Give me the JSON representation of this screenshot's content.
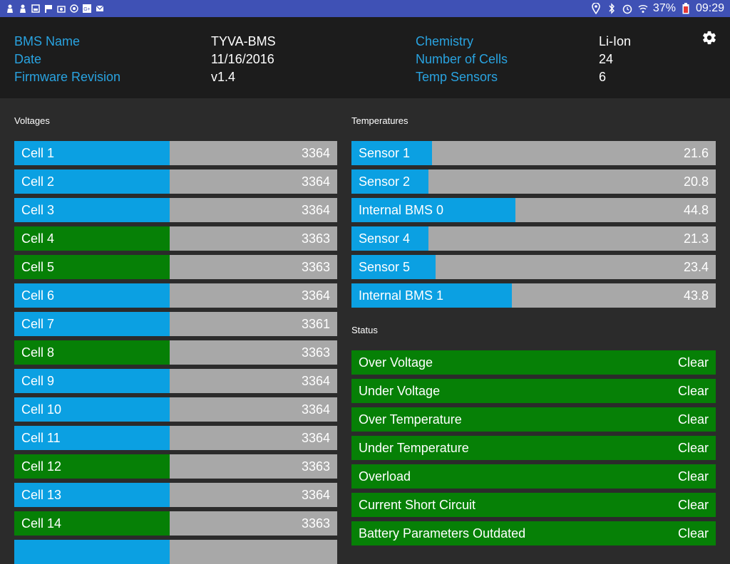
{
  "statusbar": {
    "battery": "37%",
    "time": "09:29",
    "left_icons": [
      "person-icon",
      "person-icon",
      "image-icon",
      "flag-icon",
      "camera-icon",
      "target-icon",
      "google-plus-icon",
      "mail-icon"
    ],
    "right_icons": [
      "location-icon",
      "bluetooth-icon",
      "alarm-icon",
      "wifi-icon",
      "battery-icon"
    ]
  },
  "info": {
    "bms_name_label": "BMS Name",
    "bms_name": "TYVA-BMS",
    "date_label": "Date",
    "date": "11/16/2016",
    "firmware_label": "Firmware Revision",
    "firmware": "v1.4",
    "chemistry_label": "Chemistry",
    "chemistry": "Li-Ion",
    "cells_label": "Number of Cells",
    "cells": "24",
    "temp_label": "Temp Sensors",
    "temp": "6"
  },
  "voltages": {
    "title": "Voltages",
    "items": [
      {
        "label": "Cell 1",
        "value": "3364",
        "color": "blue"
      },
      {
        "label": "Cell 2",
        "value": "3364",
        "color": "blue"
      },
      {
        "label": "Cell 3",
        "value": "3364",
        "color": "blue"
      },
      {
        "label": "Cell 4",
        "value": "3363",
        "color": "green"
      },
      {
        "label": "Cell 5",
        "value": "3363",
        "color": "green"
      },
      {
        "label": "Cell 6",
        "value": "3364",
        "color": "blue"
      },
      {
        "label": "Cell 7",
        "value": "3361",
        "color": "blue"
      },
      {
        "label": "Cell 8",
        "value": "3363",
        "color": "green"
      },
      {
        "label": "Cell 9",
        "value": "3364",
        "color": "blue"
      },
      {
        "label": "Cell 10",
        "value": "3364",
        "color": "blue"
      },
      {
        "label": "Cell 11",
        "value": "3364",
        "color": "blue"
      },
      {
        "label": "Cell 12",
        "value": "3363",
        "color": "green"
      },
      {
        "label": "Cell 13",
        "value": "3364",
        "color": "blue"
      },
      {
        "label": "Cell 14",
        "value": "3363",
        "color": "green"
      },
      {
        "label": "",
        "value": "",
        "color": "blue"
      }
    ]
  },
  "temperatures": {
    "title": "Temperatures",
    "items": [
      {
        "label": "Sensor 1",
        "value": "21.6",
        "level": 0.221
      },
      {
        "label": "Sensor 2",
        "value": "20.8",
        "level": 0.212
      },
      {
        "label": "Internal BMS 0",
        "value": "44.8",
        "level": 0.45
      },
      {
        "label": "Sensor 4",
        "value": "21.3",
        "level": 0.212
      },
      {
        "label": "Sensor 5",
        "value": "23.4",
        "level": 0.231
      },
      {
        "label": "Internal BMS 1",
        "value": "43.8",
        "level": 0.44
      }
    ]
  },
  "status": {
    "title": "Status",
    "items": [
      {
        "label": "Over Voltage",
        "value": "Clear"
      },
      {
        "label": "Under Voltage",
        "value": "Clear"
      },
      {
        "label": "Over Temperature",
        "value": "Clear"
      },
      {
        "label": "Under Temperature",
        "value": "Clear"
      },
      {
        "label": "Overload",
        "value": "Clear"
      },
      {
        "label": "Current Short Circuit",
        "value": "Clear"
      },
      {
        "label": "Battery Parameters Outdated",
        "value": "Clear"
      }
    ]
  },
  "colors": {
    "blue": "#0ba0e2",
    "green": "#068006",
    "gray": "#a8a8a8",
    "label": "#29a3e0"
  }
}
